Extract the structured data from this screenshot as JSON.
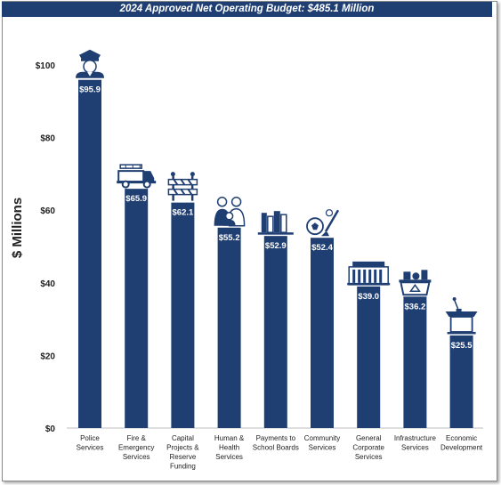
{
  "chart_data": {
    "type": "bar",
    "title": "2024 Approved Net Operating Budget: $485.1 Million",
    "ylabel": "$ Millions",
    "xlabel": "",
    "ylim": [
      0,
      100
    ],
    "yticks": [
      "$0",
      "$20",
      "$40",
      "$60",
      "$80",
      "$100"
    ],
    "categories": [
      "Police Services",
      "Fire & Emergency Services",
      "Capital Projects & Reserve Funding",
      "Human & Health Services",
      "Payments to School Boards",
      "Community Services",
      "General Corporate Services",
      "Infrastructure Services",
      "Economic Development"
    ],
    "category_lines": [
      [
        "Police",
        "Services"
      ],
      [
        "Fire &",
        "Emergency",
        "Services"
      ],
      [
        "Capital",
        "Projects &",
        "Reserve",
        "Funding"
      ],
      [
        "Human &",
        "Health",
        "Services"
      ],
      [
        "Payments to",
        "School Boards"
      ],
      [
        "Community",
        "Services"
      ],
      [
        "General",
        "Corporate",
        "Services"
      ],
      [
        "Infrastructure",
        "Services"
      ],
      [
        "Economic",
        "Development"
      ]
    ],
    "values": [
      95.9,
      65.9,
      62.1,
      55.2,
      52.9,
      52.4,
      39.0,
      36.2,
      25.5
    ],
    "data_labels": [
      "$95.9",
      "$65.9",
      "$62.1",
      "$55.2",
      "$52.9",
      "$52.4",
      "$39.0",
      "$36.2",
      "$25.5"
    ],
    "icons": [
      "police-officer-icon",
      "fire-truck-icon",
      "road-barrier-icon",
      "family-icon",
      "books-icon",
      "sports-equipment-icon",
      "office-building-icon",
      "recycling-bin-icon",
      "podium-icon"
    ],
    "bar_color": "#1f3f73",
    "grid": false
  }
}
